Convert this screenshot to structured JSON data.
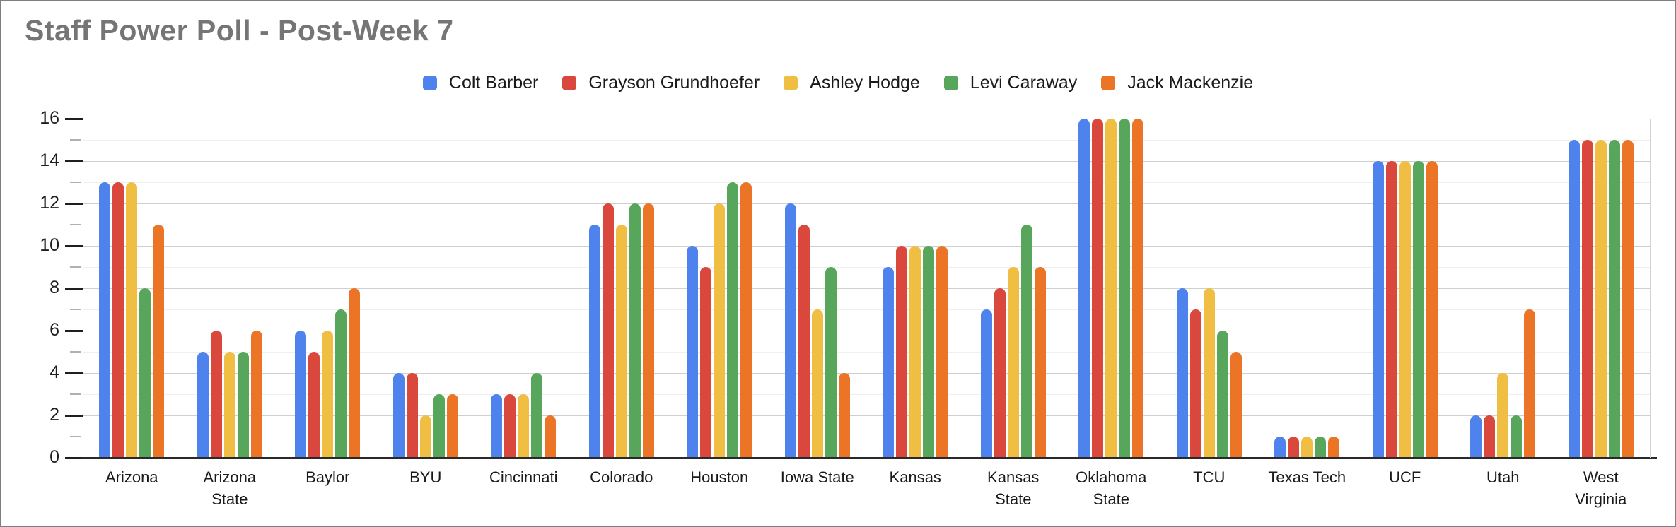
{
  "title": "Staff Power Poll - Post-Week 7",
  "chart_data": {
    "type": "bar",
    "title": "Staff Power Poll - Post-Week 7",
    "title_color": "#757575",
    "categories": [
      "Arizona",
      "Arizona State",
      "Baylor",
      "BYU",
      "Cincinnati",
      "Colorado",
      "Houston",
      "Iowa State",
      "Kansas",
      "Kansas State",
      "Oklahoma State",
      "TCU",
      "Texas Tech",
      "UCF",
      "Utah",
      "West Virginia"
    ],
    "series": [
      {
        "name": "Colt Barber",
        "color": "#4e82ec",
        "values": [
          13,
          5,
          6,
          4,
          3,
          11,
          10,
          12,
          9,
          7,
          16,
          8,
          1,
          14,
          2,
          15
        ]
      },
      {
        "name": "Grayson Grundhoefer",
        "color": "#d9473d",
        "values": [
          13,
          6,
          5,
          4,
          3,
          12,
          9,
          11,
          10,
          8,
          16,
          7,
          1,
          14,
          2,
          15
        ]
      },
      {
        "name": "Ashley Hodge",
        "color": "#f0be42",
        "values": [
          13,
          5,
          6,
          2,
          3,
          11,
          12,
          7,
          10,
          9,
          16,
          8,
          1,
          14,
          4,
          15
        ]
      },
      {
        "name": "Levi Caraway",
        "color": "#58a55c",
        "values": [
          8,
          5,
          7,
          3,
          4,
          12,
          13,
          9,
          10,
          11,
          16,
          6,
          1,
          14,
          2,
          15
        ]
      },
      {
        "name": "Jack Mackenzie",
        "color": "#ec7426",
        "values": [
          11,
          6,
          8,
          3,
          2,
          12,
          13,
          4,
          10,
          9,
          16,
          5,
          1,
          14,
          7,
          15
        ]
      }
    ],
    "xlabel": "",
    "ylabel": "",
    "ylim": [
      0,
      16
    ],
    "y_ticks": [
      0,
      2,
      4,
      6,
      8,
      10,
      12,
      14,
      16
    ],
    "y_minor_step": 1,
    "grid": true,
    "legend_position": "top"
  }
}
